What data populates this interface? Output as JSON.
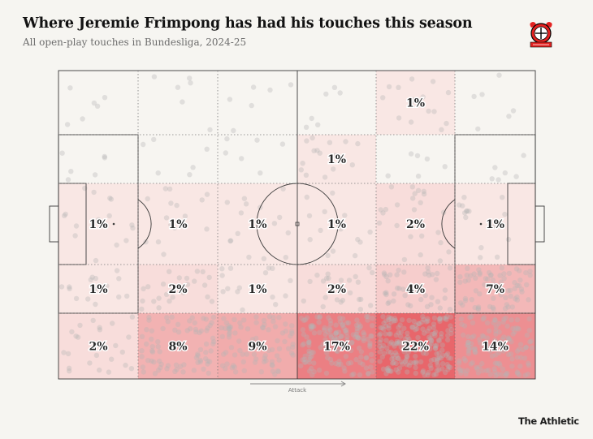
{
  "header": {
    "title": "Where Jeremie Frimpong has had his touches this season",
    "subtitle": "All open-play touches in Bundesliga, 2024-25"
  },
  "crest": {
    "name": "bayer-leverkusen-crest",
    "colors": [
      "#e32221",
      "#000000",
      "#f1c40f"
    ]
  },
  "footer": {
    "brand": "The Athletic"
  },
  "direction": {
    "label": "Attack"
  },
  "colors": {
    "background": "#f6f5f1",
    "pitch_lines": "#3a3a3a",
    "heat_low": "#fbf5f1",
    "heat_high": "#e8666b",
    "touch_dot": "#b4b4b4"
  },
  "chart_data": {
    "type": "heatmap",
    "title": "Where Jeremie Frimpong has had his touches this season",
    "subtitle": "All open-play touches in Bundesliga, 2024-25",
    "unit": "% of touches",
    "columns": 6,
    "rows": 5,
    "attack_direction": "left-to-right",
    "zones": [
      [
        null,
        null,
        null,
        null,
        "1%",
        null
      ],
      [
        null,
        null,
        null,
        "1%",
        null,
        null
      ],
      [
        "1%",
        "1%",
        "1%",
        "1%",
        "2%",
        "1%"
      ],
      [
        "1%",
        "2%",
        "1%",
        "2%",
        "4%",
        "7%"
      ],
      [
        "2%",
        "8%",
        "9%",
        "17%",
        "22%",
        "14%"
      ]
    ],
    "values": [
      [
        0,
        0,
        0,
        0,
        1,
        0
      ],
      [
        0,
        0,
        0,
        1,
        0,
        0
      ],
      [
        1,
        1,
        1,
        1,
        2,
        1
      ],
      [
        1,
        2,
        1,
        2,
        4,
        7
      ],
      [
        2,
        8,
        9,
        17,
        22,
        14
      ]
    ]
  }
}
